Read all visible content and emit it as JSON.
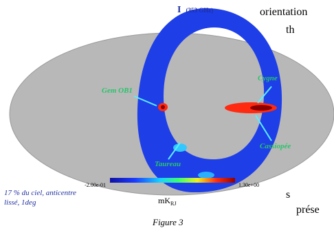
{
  "figure": {
    "title": "I",
    "title_freq": "(353 GHz)",
    "labels": [
      "Gem OB1",
      "Cygne",
      "Cassiopée",
      "Taureau"
    ],
    "colorbar": {
      "min_label": "-2.00e-01",
      "max_label": "1.30e+00",
      "unit": "mK",
      "unit_sub": "RJ"
    },
    "caption_lines": [
      "17 % du ciel, anticentre",
      "lissé, 1deg"
    ],
    "figure_label": "Figure 3"
  },
  "body_text": [
    "orientation",
    "th",
    "s",
    "prése"
  ]
}
